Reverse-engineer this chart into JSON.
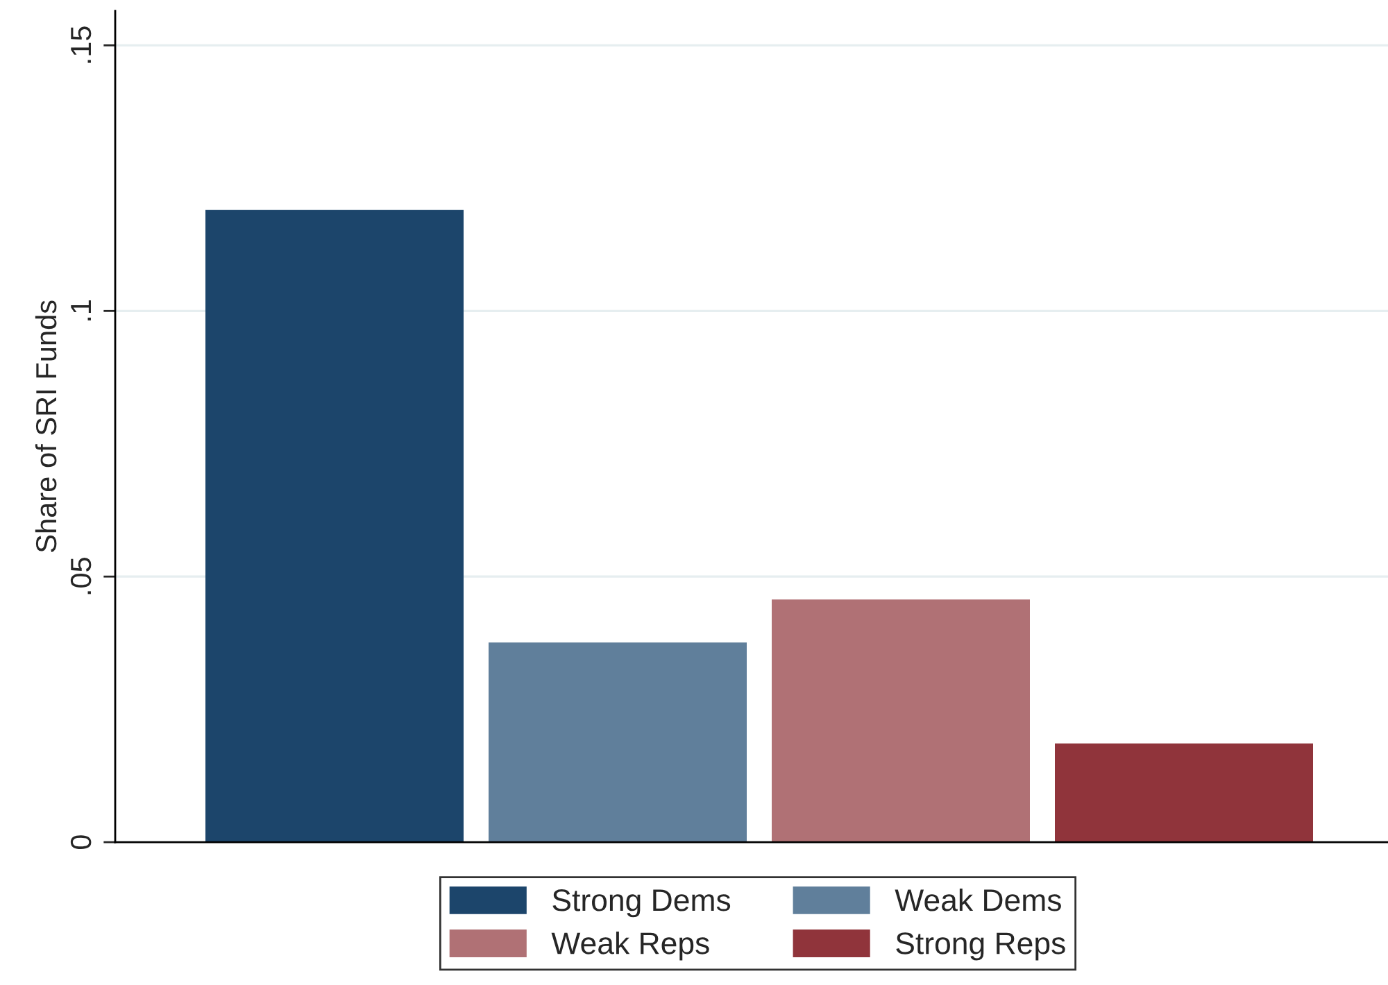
{
  "chart_data": {
    "type": "bar",
    "ylabel": "Share of SRI Funds",
    "categories": [
      null
    ],
    "series": [
      {
        "name": "Strong Dems",
        "color": "#1c456b",
        "values": [
          0.119
        ]
      },
      {
        "name": "Weak Dems",
        "color": "#607f9b",
        "values": [
          0.0376
        ]
      },
      {
        "name": "Weak Reps",
        "color": "#b07175",
        "values": [
          0.0457
        ]
      },
      {
        "name": "Strong Reps",
        "color": "#90343b",
        "values": [
          0.0186
        ]
      }
    ],
    "ylim": [
      0,
      0.1565
    ],
    "yticks": [
      0,
      {
        "value": 0.05,
        "label": ".05"
      },
      {
        "value": 0.1,
        "label": ".1"
      },
      {
        "value": 0.15,
        "label": ".15"
      }
    ],
    "grid": "y",
    "legend": "bottom"
  }
}
